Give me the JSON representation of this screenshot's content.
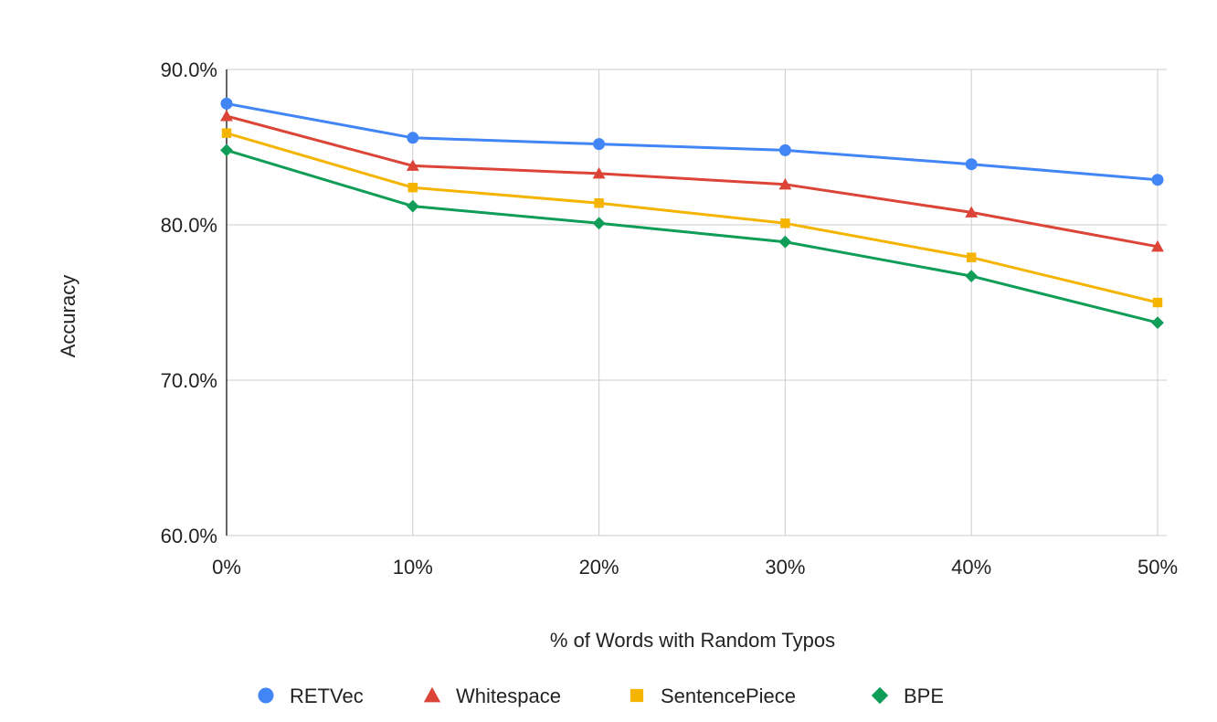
{
  "chart_data": {
    "type": "line",
    "title": "",
    "xlabel": "% of Words with Random Typos",
    "ylabel": "Accuracy",
    "categories": [
      "0%",
      "10%",
      "20%",
      "30%",
      "40%",
      "50%"
    ],
    "ylim": [
      60,
      90
    ],
    "yticks": [
      60,
      70,
      80,
      90
    ],
    "ytick_labels": [
      "60.0%",
      "70.0%",
      "80.0%",
      "90.0%"
    ],
    "grid": true,
    "legend_position": "bottom",
    "series": [
      {
        "name": "RETVec",
        "marker": "circle",
        "color": "#4285F4",
        "values": [
          87.8,
          85.6,
          85.2,
          84.8,
          83.9,
          82.9
        ]
      },
      {
        "name": "Whitespace",
        "marker": "triangle",
        "color": "#DB4437",
        "values": [
          87.0,
          83.8,
          83.3,
          82.6,
          80.8,
          78.6
        ]
      },
      {
        "name": "SentencePiece",
        "marker": "square",
        "color": "#F4B400",
        "values": [
          85.9,
          82.4,
          81.4,
          80.1,
          77.9,
          75.0
        ]
      },
      {
        "name": "BPE",
        "marker": "diamond",
        "color": "#0F9D58",
        "values": [
          84.8,
          81.2,
          80.1,
          78.9,
          76.7,
          73.7
        ]
      }
    ]
  }
}
